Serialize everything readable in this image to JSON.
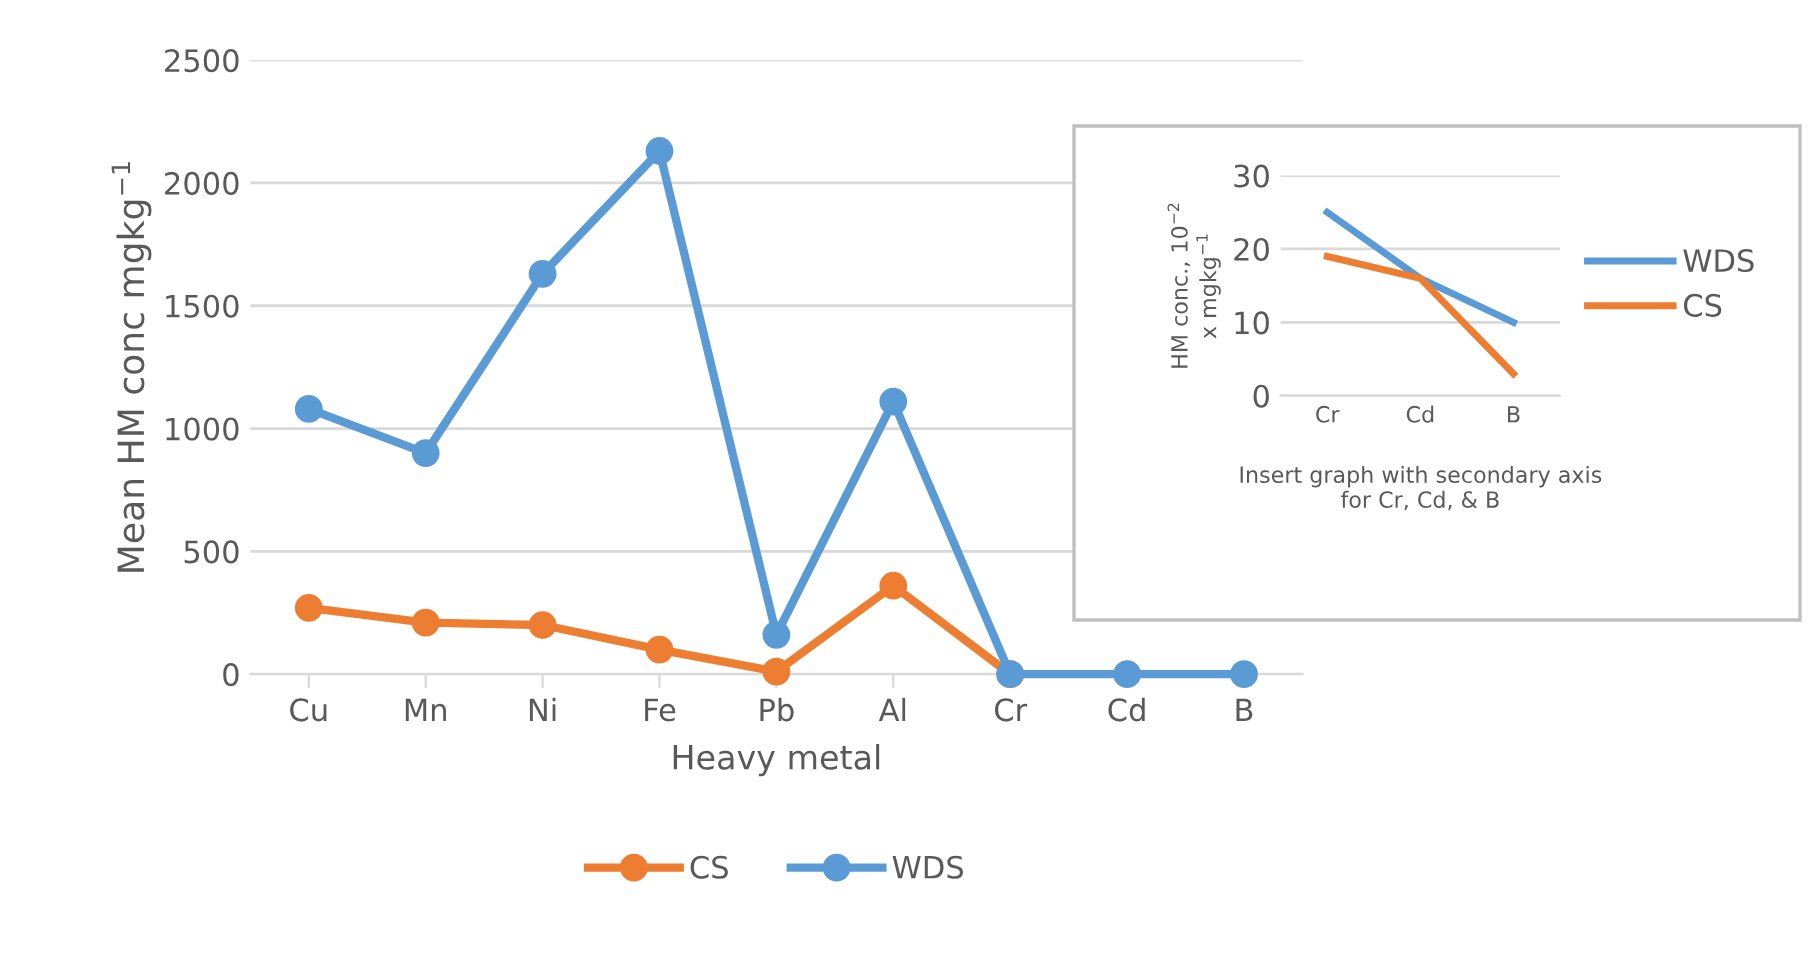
{
  "chart_data": [
    {
      "type": "line",
      "xlabel": "Heavy metal",
      "ylabel": "Mean HM conc mgkg$^{−1}$",
      "categories": [
        "Cu",
        "Mn",
        "Ni",
        "Fe",
        "Pb",
        "Al",
        "Cr",
        "Cd",
        "B"
      ],
      "series": [
        {
          "name": "CS",
          "color": "#ed7d31",
          "values": [
            270,
            210,
            200,
            100,
            10,
            360,
            0,
            null,
            null
          ]
        },
        {
          "name": "WDS",
          "color": "#5b9bd5",
          "values": [
            1080,
            900,
            1630,
            2130,
            160,
            1110,
            0,
            0,
            0
          ]
        }
      ],
      "ylim": [
        0,
        2500
      ],
      "yticks": [
        0,
        500,
        1000,
        1500,
        2000,
        2500
      ],
      "grid": "y",
      "legend": "bottom",
      "marker": "circle",
      "line_style": "solid"
    },
    {
      "type": "line",
      "xlabel": "Insert graph with secondary axis\nfor Cr, Cd, & B",
      "ylabel": "HM conc., 10$^{−2}$\nx mgkg$^{−1}$",
      "categories": [
        "Cr",
        "Cd",
        "B"
      ],
      "series": [
        {
          "name": "WDS",
          "color": "#5b9bd5",
          "values": [
            25,
            16,
            10
          ]
        },
        {
          "name": "CS",
          "color": "#ed7d31",
          "values": [
            19,
            16,
            3
          ]
        }
      ],
      "ylim": [
        0,
        30
      ],
      "yticks": [
        0,
        10,
        20,
        30
      ],
      "grid": "y",
      "legend": "right",
      "marker": "none",
      "line_style": "solid"
    }
  ]
}
